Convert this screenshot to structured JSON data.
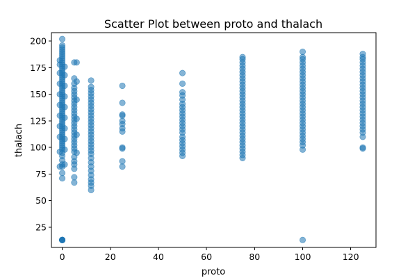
{
  "chart_data": {
    "type": "scatter",
    "title": "Scatter Plot between proto and thalach",
    "xlabel": "proto",
    "ylabel": "thalach",
    "xlim": [
      -4.5,
      130.5
    ],
    "ylim": [
      6,
      208
    ],
    "xticks": [
      0,
      20,
      40,
      60,
      80,
      100,
      120
    ],
    "yticks": [
      25,
      50,
      75,
      100,
      125,
      150,
      175,
      200
    ],
    "grid": false,
    "legend": "none",
    "colors": {
      "points": "#1f77b4",
      "point_alpha": 0.55
    },
    "points": [
      [
        0,
        13
      ],
      [
        0,
        13
      ],
      [
        0,
        13
      ],
      [
        0,
        13
      ],
      [
        0,
        13
      ],
      [
        0,
        13
      ],
      [
        0,
        13
      ],
      [
        0,
        13
      ],
      [
        0,
        71
      ],
      [
        0,
        76
      ],
      [
        0,
        82
      ],
      [
        0,
        84
      ],
      [
        0,
        88
      ],
      [
        0,
        92
      ],
      [
        0,
        95
      ],
      [
        0,
        98
      ],
      [
        0,
        100
      ],
      [
        0,
        102
      ],
      [
        0,
        104
      ],
      [
        0,
        106
      ],
      [
        0,
        108
      ],
      [
        0,
        110
      ],
      [
        0,
        112
      ],
      [
        0,
        114
      ],
      [
        0,
        116
      ],
      [
        0,
        118
      ],
      [
        0,
        120
      ],
      [
        0,
        122
      ],
      [
        0,
        124
      ],
      [
        0,
        126
      ],
      [
        0,
        128
      ],
      [
        0,
        130
      ],
      [
        0,
        132
      ],
      [
        0,
        134
      ],
      [
        0,
        136
      ],
      [
        0,
        138
      ],
      [
        0,
        140
      ],
      [
        0,
        142
      ],
      [
        0,
        144
      ],
      [
        0,
        146
      ],
      [
        0,
        148
      ],
      [
        0,
        150
      ],
      [
        0,
        152
      ],
      [
        0,
        154
      ],
      [
        0,
        156
      ],
      [
        0,
        158
      ],
      [
        0,
        160
      ],
      [
        0,
        162
      ],
      [
        0,
        164
      ],
      [
        0,
        166
      ],
      [
        0,
        168
      ],
      [
        0,
        170
      ],
      [
        0,
        172
      ],
      [
        0,
        174
      ],
      [
        0,
        176
      ],
      [
        0,
        178
      ],
      [
        0,
        180
      ],
      [
        0,
        182
      ],
      [
        0,
        184
      ],
      [
        0,
        186
      ],
      [
        0,
        188
      ],
      [
        0,
        190
      ],
      [
        0,
        192
      ],
      [
        0,
        194
      ],
      [
        0,
        196
      ],
      [
        0,
        202
      ],
      [
        -1,
        82
      ],
      [
        -1,
        96
      ],
      [
        -1,
        110
      ],
      [
        -1,
        120
      ],
      [
        -1,
        130
      ],
      [
        -1,
        140
      ],
      [
        -1,
        150
      ],
      [
        -1,
        160
      ],
      [
        -1,
        170
      ],
      [
        -1,
        178
      ],
      [
        -1,
        182
      ],
      [
        1,
        84
      ],
      [
        1,
        98
      ],
      [
        1,
        108
      ],
      [
        1,
        118
      ],
      [
        1,
        128
      ],
      [
        1,
        138
      ],
      [
        1,
        148
      ],
      [
        1,
        158
      ],
      [
        1,
        168
      ],
      [
        1,
        176
      ],
      [
        5,
        67
      ],
      [
        5,
        72
      ],
      [
        5,
        80
      ],
      [
        5,
        84
      ],
      [
        5,
        87
      ],
      [
        5,
        91
      ],
      [
        5,
        96
      ],
      [
        5,
        99
      ],
      [
        5,
        102
      ],
      [
        5,
        105
      ],
      [
        5,
        108
      ],
      [
        5,
        111
      ],
      [
        5,
        114
      ],
      [
        5,
        117
      ],
      [
        5,
        120
      ],
      [
        5,
        123
      ],
      [
        5,
        126
      ],
      [
        5,
        129
      ],
      [
        5,
        132
      ],
      [
        5,
        135
      ],
      [
        5,
        138
      ],
      [
        5,
        141
      ],
      [
        5,
        144
      ],
      [
        5,
        147
      ],
      [
        5,
        150
      ],
      [
        5,
        153
      ],
      [
        5,
        156
      ],
      [
        5,
        160
      ],
      [
        5,
        165
      ],
      [
        5,
        180
      ],
      [
        6,
        95
      ],
      [
        6,
        112
      ],
      [
        6,
        127
      ],
      [
        6,
        145
      ],
      [
        6,
        162
      ],
      [
        6,
        180
      ],
      [
        12,
        60
      ],
      [
        12,
        64
      ],
      [
        12,
        67
      ],
      [
        12,
        70
      ],
      [
        12,
        74
      ],
      [
        12,
        78
      ],
      [
        12,
        82
      ],
      [
        12,
        86
      ],
      [
        12,
        90
      ],
      [
        12,
        94
      ],
      [
        12,
        97
      ],
      [
        12,
        100
      ],
      [
        12,
        103
      ],
      [
        12,
        106
      ],
      [
        12,
        109
      ],
      [
        12,
        112
      ],
      [
        12,
        115
      ],
      [
        12,
        118
      ],
      [
        12,
        121
      ],
      [
        12,
        124
      ],
      [
        12,
        127
      ],
      [
        12,
        130
      ],
      [
        12,
        133
      ],
      [
        12,
        136
      ],
      [
        12,
        139
      ],
      [
        12,
        142
      ],
      [
        12,
        145
      ],
      [
        12,
        148
      ],
      [
        12,
        151
      ],
      [
        12,
        154
      ],
      [
        12,
        157
      ],
      [
        12,
        163
      ],
      [
        25,
        82
      ],
      [
        25,
        87
      ],
      [
        25,
        99
      ],
      [
        25,
        100
      ],
      [
        25,
        115
      ],
      [
        25,
        118
      ],
      [
        25,
        122
      ],
      [
        25,
        125
      ],
      [
        25,
        130
      ],
      [
        25,
        131
      ],
      [
        25,
        142
      ],
      [
        25,
        158
      ],
      [
        50,
        92
      ],
      [
        50,
        95
      ],
      [
        50,
        98
      ],
      [
        50,
        101
      ],
      [
        50,
        104
      ],
      [
        50,
        107
      ],
      [
        50,
        110
      ],
      [
        50,
        114
      ],
      [
        50,
        117
      ],
      [
        50,
        120
      ],
      [
        50,
        123
      ],
      [
        50,
        126
      ],
      [
        50,
        129
      ],
      [
        50,
        132
      ],
      [
        50,
        135
      ],
      [
        50,
        138
      ],
      [
        50,
        141
      ],
      [
        50,
        145
      ],
      [
        50,
        149
      ],
      [
        50,
        152
      ],
      [
        50,
        160
      ],
      [
        50,
        170
      ],
      [
        75,
        90
      ],
      [
        75,
        93
      ],
      [
        75,
        96
      ],
      [
        75,
        99
      ],
      [
        75,
        102
      ],
      [
        75,
        105
      ],
      [
        75,
        108
      ],
      [
        75,
        111
      ],
      [
        75,
        114
      ],
      [
        75,
        117
      ],
      [
        75,
        120
      ],
      [
        75,
        123
      ],
      [
        75,
        126
      ],
      [
        75,
        129
      ],
      [
        75,
        132
      ],
      [
        75,
        135
      ],
      [
        75,
        138
      ],
      [
        75,
        141
      ],
      [
        75,
        144
      ],
      [
        75,
        147
      ],
      [
        75,
        150
      ],
      [
        75,
        153
      ],
      [
        75,
        156
      ],
      [
        75,
        159
      ],
      [
        75,
        162
      ],
      [
        75,
        165
      ],
      [
        75,
        168
      ],
      [
        75,
        171
      ],
      [
        75,
        174
      ],
      [
        75,
        177
      ],
      [
        75,
        180
      ],
      [
        75,
        183
      ],
      [
        75,
        185
      ],
      [
        100,
        13
      ],
      [
        100,
        98
      ],
      [
        100,
        102
      ],
      [
        100,
        105
      ],
      [
        100,
        108
      ],
      [
        100,
        111
      ],
      [
        100,
        114
      ],
      [
        100,
        117
      ],
      [
        100,
        120
      ],
      [
        100,
        123
      ],
      [
        100,
        126
      ],
      [
        100,
        129
      ],
      [
        100,
        132
      ],
      [
        100,
        135
      ],
      [
        100,
        138
      ],
      [
        100,
        141
      ],
      [
        100,
        144
      ],
      [
        100,
        147
      ],
      [
        100,
        150
      ],
      [
        100,
        153
      ],
      [
        100,
        156
      ],
      [
        100,
        159
      ],
      [
        100,
        162
      ],
      [
        100,
        165
      ],
      [
        100,
        168
      ],
      [
        100,
        171
      ],
      [
        100,
        174
      ],
      [
        100,
        177
      ],
      [
        100,
        180
      ],
      [
        100,
        183
      ],
      [
        100,
        185
      ],
      [
        100,
        190
      ],
      [
        125,
        99
      ],
      [
        125,
        100
      ],
      [
        125,
        110
      ],
      [
        125,
        114
      ],
      [
        125,
        117
      ],
      [
        125,
        120
      ],
      [
        125,
        123
      ],
      [
        125,
        126
      ],
      [
        125,
        129
      ],
      [
        125,
        132
      ],
      [
        125,
        135
      ],
      [
        125,
        138
      ],
      [
        125,
        141
      ],
      [
        125,
        144
      ],
      [
        125,
        147
      ],
      [
        125,
        150
      ],
      [
        125,
        153
      ],
      [
        125,
        156
      ],
      [
        125,
        159
      ],
      [
        125,
        162
      ],
      [
        125,
        165
      ],
      [
        125,
        168
      ],
      [
        125,
        171
      ],
      [
        125,
        174
      ],
      [
        125,
        177
      ],
      [
        125,
        180
      ],
      [
        125,
        183
      ],
      [
        125,
        185
      ],
      [
        125,
        188
      ]
    ]
  }
}
